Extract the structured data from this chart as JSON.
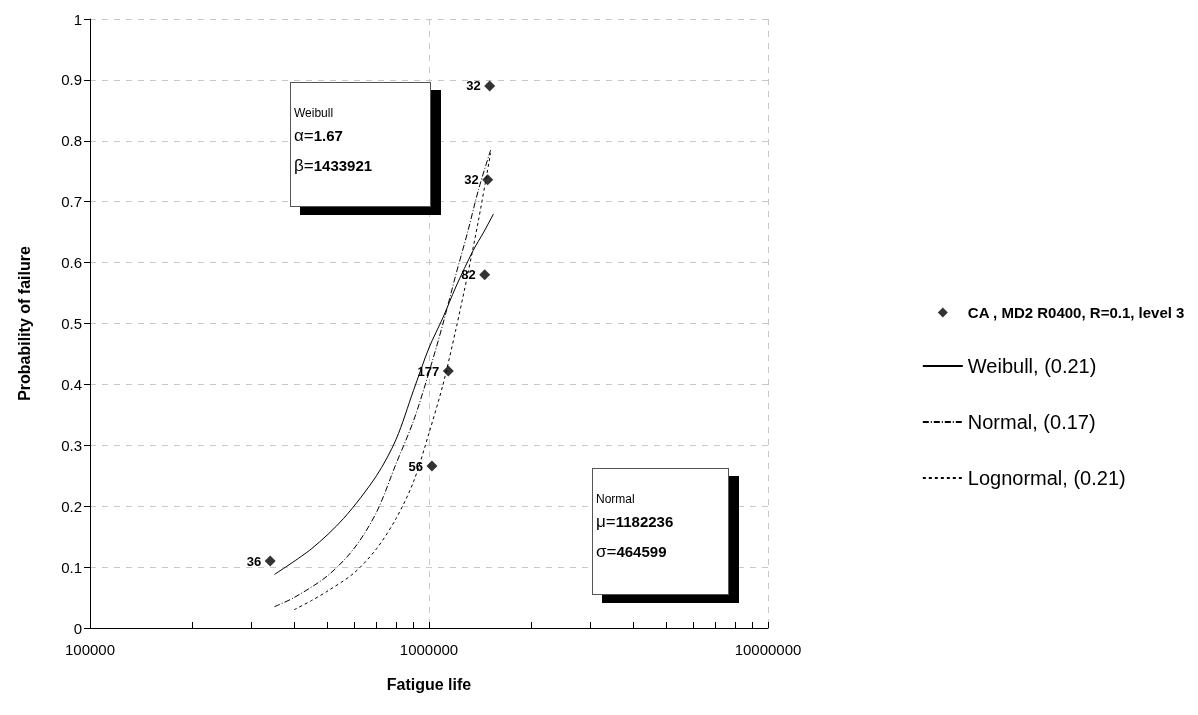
{
  "chart_data": {
    "type": "scatter",
    "xlabel": "Fatigue life",
    "ylabel": "Probability of failure",
    "log": "x",
    "grid": true,
    "legend": "right",
    "xlim": [
      100000,
      10000000
    ],
    "xticks": [
      100000,
      {
        "value": 200000,
        "label": null
      },
      {
        "value": 300000,
        "label": null
      },
      {
        "value": 400000,
        "label": null
      },
      {
        "value": 500000,
        "label": null
      },
      {
        "value": 600000,
        "label": null
      },
      {
        "value": 700000,
        "label": null
      },
      {
        "value": 800000,
        "label": null
      },
      {
        "value": 900000,
        "label": null
      },
      1000000,
      {
        "value": 2000000,
        "label": null
      },
      {
        "value": 3000000,
        "label": null
      },
      {
        "value": 4000000,
        "label": null
      },
      {
        "value": 5000000,
        "label": null
      },
      {
        "value": 6000000,
        "label": null
      },
      {
        "value": 7000000,
        "label": null
      },
      {
        "value": 8000000,
        "label": null
      },
      {
        "value": 9000000,
        "label": null
      },
      10000000
    ],
    "ylim": [
      0,
      1
    ],
    "yticks": [
      0,
      0.1,
      0.2,
      0.3,
      0.4,
      0.5,
      0.6,
      0.7,
      0.8,
      0.9,
      1
    ],
    "series": [
      {
        "name": "CA , MD2 R0400, R=0.1, level 3",
        "color": "#000000",
        "marker": "diamond",
        "x": [
          340000,
          1020000,
          1140000,
          1460000,
          1490000,
          1510000
        ],
        "values": [
          0.11,
          0.266,
          0.422,
          0.58,
          0.736,
          0.89
        ]
      },
      {
        "name": "Weibull, (0.21)",
        "type": "line",
        "color": "#000000",
        "marker": "none",
        "line_style": "solid",
        "x": [
          350000,
          450000,
          560000,
          700000,
          800000,
          900000,
          1000000,
          1100000,
          1200000,
          1350000,
          1450000,
          1550000
        ],
        "values": [
          0.088,
          0.13,
          0.18,
          0.25,
          0.31,
          0.39,
          0.46,
          0.51,
          0.56,
          0.62,
          0.65,
          0.68
        ]
      },
      {
        "name": "Normal, (0.17)",
        "type": "line",
        "color": "#000000",
        "marker": "none",
        "line_style": "dashed",
        "x": [
          350000,
          400000,
          500000,
          600000,
          700000,
          800000,
          900000,
          1000000,
          1100000,
          1200000,
          1300000,
          1400000,
          1520000
        ],
        "values": [
          0.035,
          0.05,
          0.085,
          0.13,
          0.19,
          0.27,
          0.34,
          0.42,
          0.5,
          0.58,
          0.65,
          0.72,
          0.785
        ]
      },
      {
        "name": "Lognormal, (0.21)",
        "type": "line",
        "color": "#000000",
        "marker": "none",
        "line_style": "dashed",
        "x": [
          400000,
          450000,
          500000,
          600000,
          700000,
          800000,
          900000,
          1000000,
          1100000,
          1200000,
          1300000,
          1400000,
          1520000
        ],
        "values": [
          0.03,
          0.045,
          0.06,
          0.09,
          0.13,
          0.18,
          0.24,
          0.32,
          0.4,
          0.49,
          0.58,
          0.67,
          0.78
        ]
      }
    ],
    "annotations": [
      "Weibull\nα=1.67\nβ=1433921",
      "Normal\nμ=1182236\nσ=464599",
      {
        "text": "36",
        "x": 340000,
        "y": 0.11
      },
      {
        "text": "56",
        "x": 1020000,
        "y": 0.266
      },
      {
        "text": "177",
        "x": 1140000,
        "y": 0.422
      },
      {
        "text": "82",
        "x": 1460000,
        "y": 0.58
      },
      {
        "text": "32",
        "x": 1490000,
        "y": 0.736
      },
      {
        "text": "32",
        "x": 1510000,
        "y": 0.89
      }
    ]
  }
}
